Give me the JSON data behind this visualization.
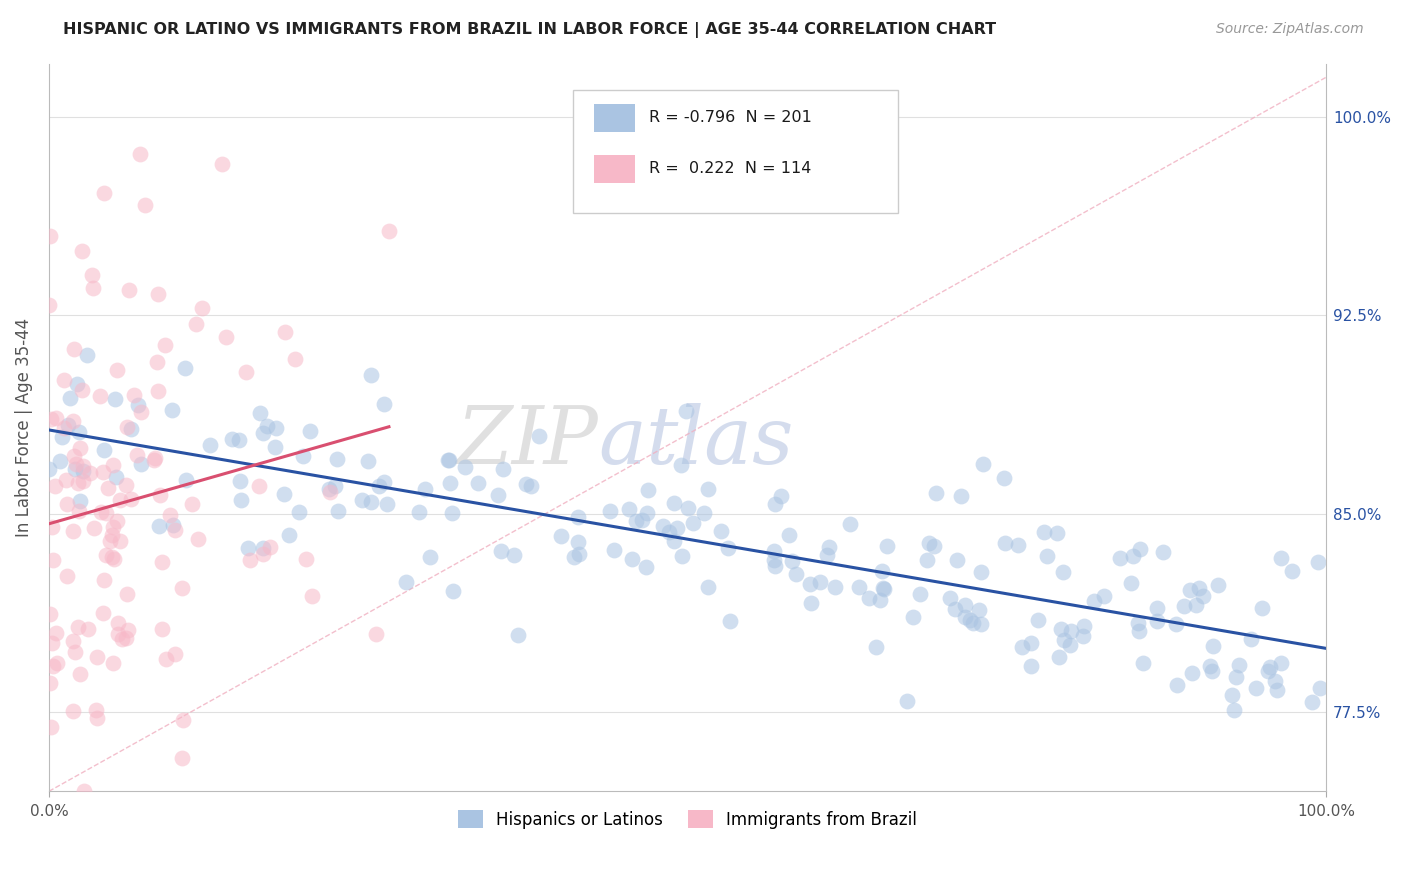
{
  "title": "HISPANIC OR LATINO VS IMMIGRANTS FROM BRAZIL IN LABOR FORCE | AGE 35-44 CORRELATION CHART",
  "source": "Source: ZipAtlas.com",
  "ylabel": "In Labor Force | Age 35-44",
  "xmin": 0.0,
  "xmax": 100.0,
  "ymin": 74.5,
  "ymax": 102.0,
  "yticks": [
    77.5,
    85.0,
    92.5,
    100.0
  ],
  "ytick_labels": [
    "77.5%",
    "85.0%",
    "92.5%",
    "100.0%"
  ],
  "blue_R": -0.796,
  "blue_N": 201,
  "pink_R": 0.222,
  "pink_N": 114,
  "blue_scatter_color": "#aac4e2",
  "pink_scatter_color": "#f7b8c8",
  "blue_line_color": "#2952a3",
  "pink_line_color": "#d94f70",
  "dashed_line_color": "#f0afc0",
  "watermark_zip": "ZIP",
  "watermark_atlas": "atlas",
  "legend_label_blue": "Hispanics or Latinos",
  "legend_label_pink": "Immigrants from Brazil",
  "background_color": "#ffffff",
  "grid_color": "#e0e0e0",
  "blue_seed": 12345,
  "pink_seed": 99999
}
